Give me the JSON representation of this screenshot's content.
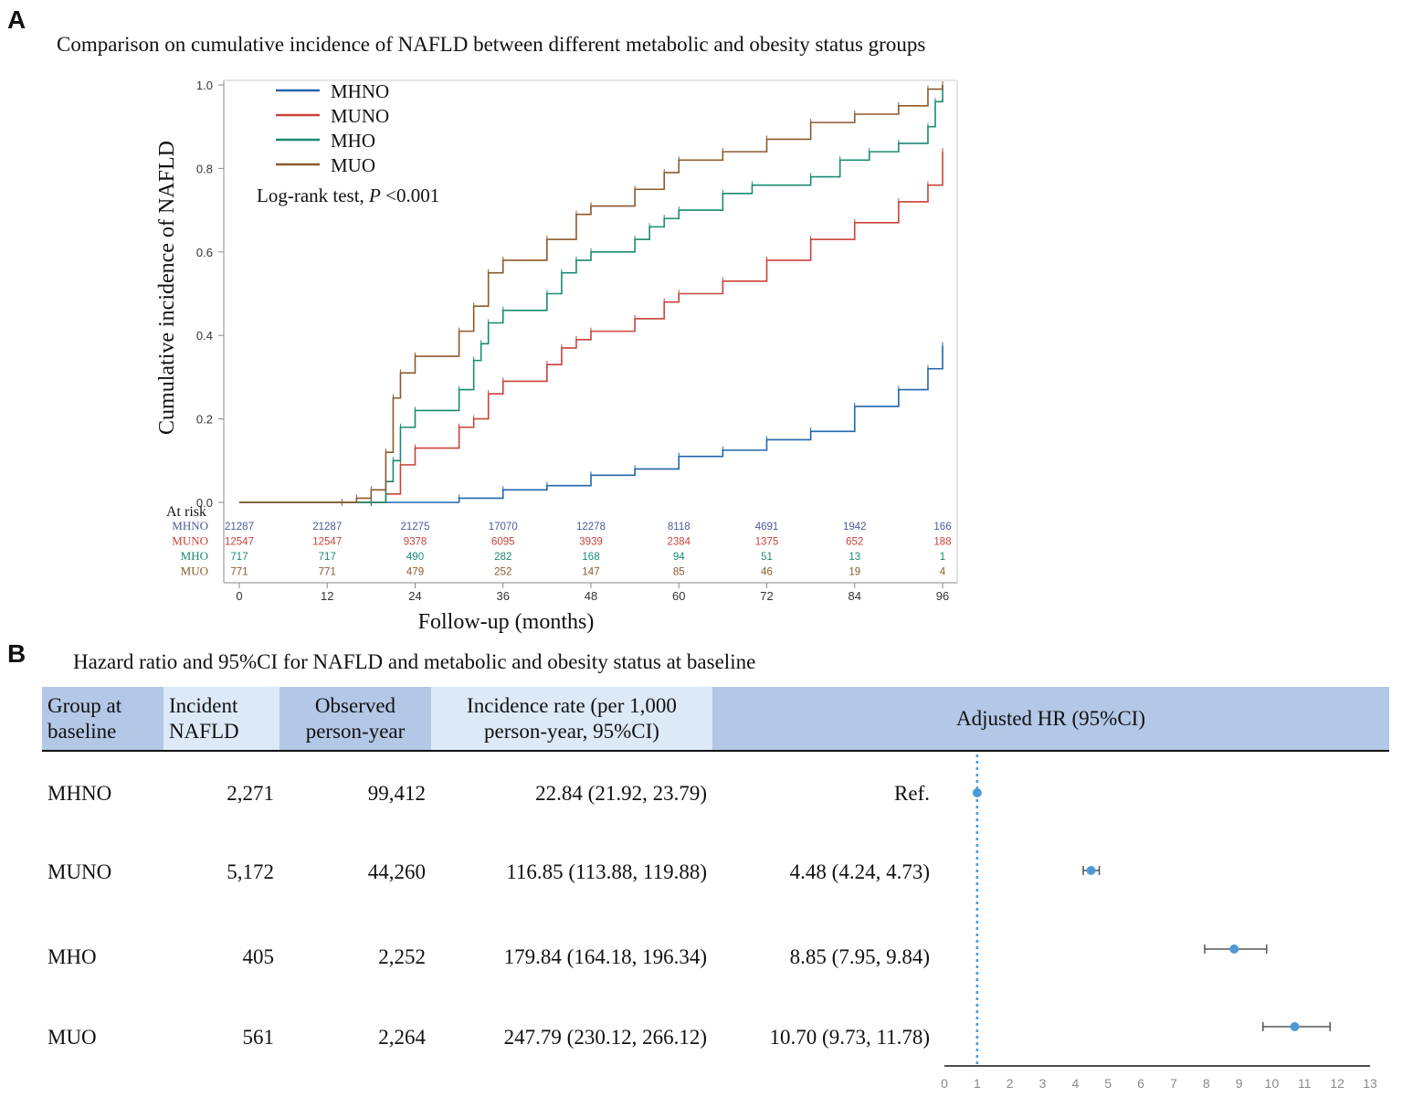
{
  "panelA": {
    "letter": "A",
    "title": "Comparison on cumulative incidence of NAFLD between different metabolic and obesity status groups",
    "chart_data": {
      "type": "line",
      "subtype": "kaplan-meier-cumulative-incidence",
      "xlabel": "Follow-up (months)",
      "ylabel": "Cumulative incidence of  NAFLD",
      "xlim": [
        0,
        96
      ],
      "ylim": [
        0,
        1.0
      ],
      "x_ticks": [
        0,
        12,
        24,
        36,
        48,
        60,
        72,
        84,
        96
      ],
      "y_ticks": [
        "0.0",
        "0.2",
        "0.4",
        "0.6",
        "0.8",
        "1.0"
      ],
      "grid": false,
      "legend_position": "top-left",
      "annotation_prefix": "Log-rank test, ",
      "annotation_p": "P",
      "annotation_suffix": " <0.001",
      "series": [
        {
          "name": "MHNO",
          "color": "#2166ac",
          "x": [
            0,
            18,
            30,
            36,
            42,
            48,
            54,
            60,
            66,
            72,
            78,
            84,
            90,
            94,
            96
          ],
          "y": [
            0,
            0,
            0.01,
            0.03,
            0.04,
            0.065,
            0.08,
            0.11,
            0.125,
            0.15,
            0.17,
            0.23,
            0.27,
            0.32,
            0.375
          ]
        },
        {
          "name": "MUNO",
          "color": "#c8423a",
          "x": [
            0,
            18,
            20,
            22,
            24,
            30,
            32,
            34,
            36,
            42,
            44,
            46,
            48,
            54,
            58,
            60,
            66,
            72,
            78,
            84,
            90,
            94,
            96
          ],
          "y": [
            0,
            0,
            0.02,
            0.09,
            0.13,
            0.18,
            0.2,
            0.26,
            0.29,
            0.33,
            0.37,
            0.39,
            0.41,
            0.44,
            0.48,
            0.5,
            0.53,
            0.58,
            0.63,
            0.67,
            0.72,
            0.76,
            0.84
          ]
        },
        {
          "name": "MHO",
          "color": "#1a8a70",
          "x": [
            0,
            18,
            20,
            21,
            22,
            24,
            30,
            32,
            33,
            34,
            36,
            42,
            44,
            46,
            48,
            54,
            56,
            58,
            60,
            66,
            70,
            78,
            82,
            86,
            90,
            94,
            95,
            96
          ],
          "y": [
            0,
            0,
            0.05,
            0.1,
            0.18,
            0.22,
            0.27,
            0.34,
            0.38,
            0.43,
            0.46,
            0.5,
            0.55,
            0.58,
            0.6,
            0.63,
            0.66,
            0.68,
            0.7,
            0.74,
            0.76,
            0.78,
            0.82,
            0.84,
            0.86,
            0.9,
            0.96,
            1.0
          ]
        },
        {
          "name": "MUO",
          "color": "#8b5a2b",
          "x": [
            0,
            14,
            16,
            18,
            20,
            21,
            22,
            24,
            30,
            32,
            34,
            36,
            42,
            46,
            48,
            54,
            58,
            60,
            66,
            72,
            78,
            84,
            90,
            94,
            96
          ],
          "y": [
            0,
            0,
            0.01,
            0.03,
            0.12,
            0.25,
            0.31,
            0.35,
            0.41,
            0.47,
            0.55,
            0.58,
            0.63,
            0.69,
            0.71,
            0.75,
            0.79,
            0.82,
            0.84,
            0.87,
            0.91,
            0.93,
            0.95,
            0.99,
            1.0
          ]
        }
      ],
      "at_risk": {
        "label": "At risk",
        "rows": [
          {
            "name": "MHNO",
            "color": "#4a5a99",
            "values": [
              "21287",
              "21287",
              "21275",
              "17070",
              "12278",
              "8118",
              "4691",
              "1942",
              "166"
            ]
          },
          {
            "name": "MUNO",
            "color": "#c8423a",
            "values": [
              "12547",
              "12547",
              "9378",
              "6095",
              "3939",
              "2384",
              "1375",
              "652",
              "188"
            ]
          },
          {
            "name": "MHO",
            "color": "#1a8a70",
            "values": [
              "717",
              "717",
              "490",
              "282",
              "168",
              "94",
              "51",
              "13",
              "1"
            ]
          },
          {
            "name": "MUO",
            "color": "#8b5a2b",
            "values": [
              "771",
              "771",
              "479",
              "252",
              "147",
              "85",
              "46",
              "19",
              "4"
            ]
          }
        ]
      }
    }
  },
  "panelB": {
    "letter": "B",
    "title": "Hazard ratio and 95%CI for NAFLD and  metabolic and obesity status at baseline",
    "colors": {
      "header_dark": "#b3c7e6",
      "header_light": "#dce9f7",
      "point": "#4b9ad6"
    },
    "headers": [
      {
        "line1": "Group at",
        "line2": "baseline"
      },
      {
        "line1": "Incident",
        "line2": "NAFLD"
      },
      {
        "line1": "Observed",
        "line2": "person-year"
      },
      {
        "line1": "Incidence rate (per 1,000",
        "line2": "person-year, 95%CI)"
      },
      {
        "line1": "Adjusted HR (95%CI)",
        "line2": ""
      }
    ],
    "rows": [
      {
        "group": "MHNO",
        "incident": "2,271",
        "person_year": "99,412",
        "rate": "22.84 (21.92, 23.79)",
        "hr_text": "Ref."
      },
      {
        "group": "MUNO",
        "incident": "5,172",
        "person_year": "44,260",
        "rate": "116.85 (113.88, 119.88)",
        "hr_text": "4.48 (4.24, 4.73)"
      },
      {
        "group": "MHO",
        "incident": "405",
        "person_year": "2,252",
        "rate": "179.84 (164.18, 196.34)",
        "hr_text": "8.85 (7.95, 9.84)"
      },
      {
        "group": "MUO",
        "incident": "561",
        "person_year": "2,264",
        "rate": "247.79 (230.12, 266.12)",
        "hr_text": "10.70 (9.73, 11.78)"
      }
    ],
    "chart_data": {
      "type": "scatter",
      "subtype": "forest-plot",
      "xlim": [
        0,
        13
      ],
      "x_ticks": [
        "0",
        "1",
        "2",
        "3",
        "4",
        "5",
        "6",
        "7",
        "8",
        "9",
        "10",
        "11",
        "12",
        "13"
      ],
      "reference_line": 1,
      "points": [
        {
          "name": "MHNO",
          "hr": 1.0,
          "lower": 1.0,
          "upper": 1.0
        },
        {
          "name": "MUNO",
          "hr": 4.48,
          "lower": 4.24,
          "upper": 4.73
        },
        {
          "name": "MHO",
          "hr": 8.85,
          "lower": 7.95,
          "upper": 9.84
        },
        {
          "name": "MUO",
          "hr": 10.7,
          "lower": 9.73,
          "upper": 11.78
        }
      ]
    }
  }
}
